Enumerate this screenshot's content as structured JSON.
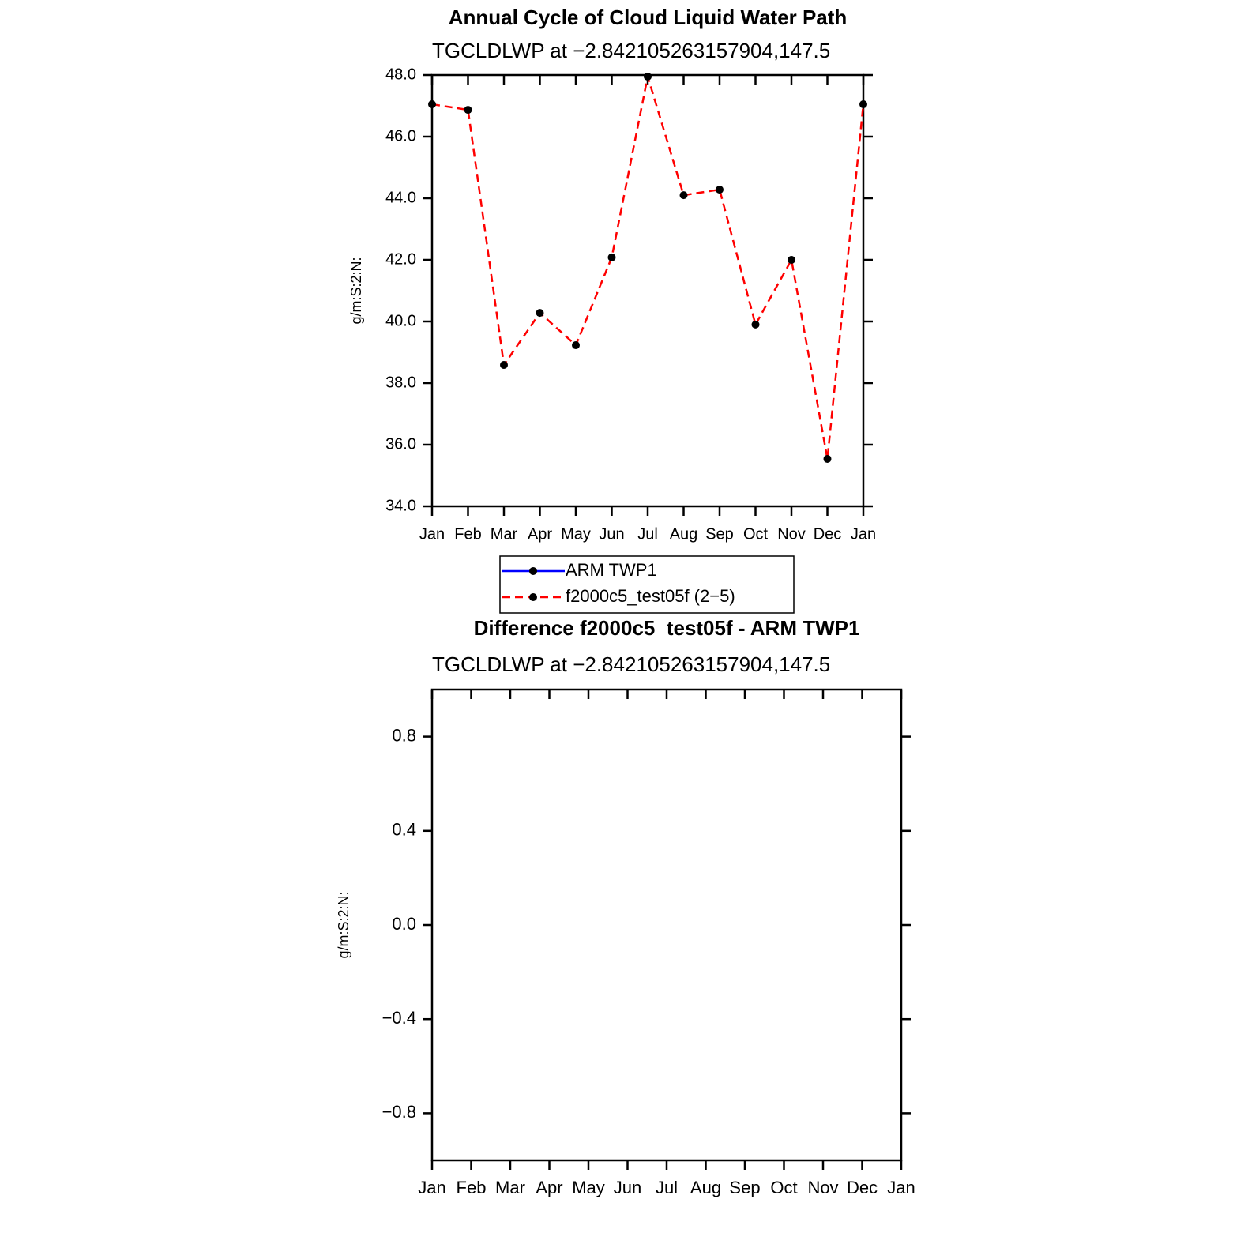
{
  "chart_data": [
    {
      "type": "line",
      "title": "Annual Cycle of Cloud Liquid Water Path",
      "subtitle": "TGCLDLWP at −2.842105263157904,147.5",
      "ylabel": "g/m:S:2:N:",
      "categories": [
        "Jan",
        "Feb",
        "Mar",
        "Apr",
        "May",
        "Jun",
        "Jul",
        "Aug",
        "Sep",
        "Oct",
        "Nov",
        "Dec",
        "Jan"
      ],
      "series": [
        {
          "name": "ARM TWP1",
          "color": "#0000ff",
          "dash": false,
          "values": [
            null,
            null,
            null,
            null,
            null,
            null,
            null,
            null,
            null,
            null,
            null,
            null,
            null
          ]
        },
        {
          "name": "f2000c5_test05f (2−5)",
          "color": "#ff0000",
          "dash": true,
          "values": [
            47.05,
            46.87,
            38.59,
            40.28,
            39.23,
            42.08,
            47.95,
            44.1,
            44.28,
            39.9,
            42.0,
            35.54,
            47.05
          ]
        }
      ],
      "ylim": [
        34,
        48
      ],
      "yticks": [
        {
          "value": 34,
          "label": "34.0"
        },
        {
          "value": 36,
          "label": "36.0"
        },
        {
          "value": 38,
          "label": "38.0"
        },
        {
          "value": 40,
          "label": "40.0"
        },
        {
          "value": 42,
          "label": "42.0"
        },
        {
          "value": 44,
          "label": "44.0"
        },
        {
          "value": 46,
          "label": "46.0"
        },
        {
          "value": 48,
          "label": "48.0"
        }
      ],
      "legend": "bottom"
    },
    {
      "type": "line",
      "title": "Difference f2000c5_test05f - ARM TWP1",
      "subtitle": "TGCLDLWP at −2.842105263157904,147.5",
      "ylabel": "g/m:S:2:N:",
      "categories": [
        "Jan",
        "Feb",
        "Mar",
        "Apr",
        "May",
        "Jun",
        "Jul",
        "Aug",
        "Sep",
        "Oct",
        "Nov",
        "Dec",
        "Jan"
      ],
      "ylim": [
        -1,
        1
      ],
      "yticks": [
        {
          "value": -0.8,
          "label": "−0.8"
        },
        {
          "value": -0.4,
          "label": "−0.4"
        },
        {
          "value": 0,
          "label": "0.0"
        },
        {
          "value": 0.4,
          "label": "0.4"
        },
        {
          "value": 0.8,
          "label": "0.8"
        }
      ]
    }
  ]
}
